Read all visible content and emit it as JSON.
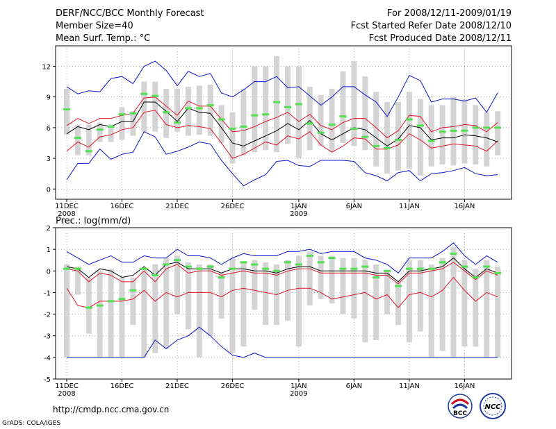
{
  "header": {
    "left": [
      "DERF/NCC/BCC Monthly Forecast",
      "Member Size=40",
      "Mean Surf. Temp.: °C"
    ],
    "right": [
      "For 2008/12/11-2009/01/19",
      "Fcst Started Refer Date 2008/12/10",
      "Fcst Produced Date 2008/12/11"
    ]
  },
  "footer": {
    "url": "http://cmdp.ncc.cma.gov.cn",
    "credit": "GrADS: COLA/IGES",
    "logos": {
      "bcc": "BCC",
      "ncc": "NCC"
    }
  },
  "colors": {
    "mean": "#000000",
    "spread": "#e0142a",
    "range": "#0a14c8",
    "box": "#d4d4d4",
    "obs": "#50e050",
    "grid": "#888888"
  },
  "chart_data": [
    {
      "type": "box-line",
      "title": "Mean Surf. Temp.: °C",
      "ylim": [
        -1,
        14
      ],
      "yticks": [
        0,
        3,
        6,
        9,
        12
      ],
      "xticks": [
        {
          "day": 1,
          "label": "11DEC",
          "sub": "2008"
        },
        {
          "day": 6,
          "label": "16DEC",
          "sub": ""
        },
        {
          "day": 11,
          "label": "21DEC",
          "sub": ""
        },
        {
          "day": 16,
          "label": "26DEC",
          "sub": ""
        },
        {
          "day": 22,
          "label": "1JAN",
          "sub": "2009"
        },
        {
          "day": 27,
          "label": "6JAN",
          "sub": ""
        },
        {
          "day": 32,
          "label": "11JAN",
          "sub": ""
        },
        {
          "day": 37,
          "label": "16JAN",
          "sub": ""
        }
      ],
      "days": [
        1,
        2,
        3,
        4,
        5,
        6,
        7,
        8,
        9,
        10,
        11,
        12,
        13,
        14,
        15,
        16,
        17,
        18,
        19,
        20,
        21,
        22,
        23,
        24,
        25,
        26,
        27,
        28,
        29,
        30,
        31,
        32,
        33,
        34,
        35,
        36,
        37,
        38,
        39,
        40
      ],
      "mean": [
        5.4,
        6.1,
        5.8,
        6.3,
        6.1,
        6.6,
        6.6,
        8.5,
        8.5,
        7.6,
        6.6,
        7.9,
        7.5,
        7.4,
        6.0,
        4.5,
        4.2,
        4.7,
        5.2,
        5.7,
        6.4,
        5.8,
        6.7,
        5.4,
        4.8,
        5.4,
        6.0,
        5.8,
        5.0,
        4.2,
        4.9,
        6.2,
        6.0,
        4.8,
        5.0,
        5.0,
        5.3,
        5.2,
        5.0,
        4.6
      ],
      "upper": [
        6.2,
        6.9,
        6.4,
        6.9,
        6.9,
        7.2,
        7.4,
        8.9,
        9.0,
        8.1,
        7.2,
        8.6,
        8.1,
        8.1,
        6.8,
        5.6,
        5.7,
        6.1,
        6.6,
        7.0,
        7.5,
        6.6,
        7.3,
        6.2,
        5.8,
        6.5,
        6.9,
        6.9,
        6.0,
        5.0,
        5.7,
        7.2,
        7.1,
        5.6,
        6.0,
        6.1,
        6.3,
        6.2,
        5.6,
        6.5
      ],
      "lower": [
        3.7,
        4.6,
        4.1,
        5.1,
        5.3,
        5.8,
        6.0,
        7.5,
        7.7,
        6.3,
        6.0,
        6.2,
        6.1,
        5.9,
        4.5,
        3.0,
        3.4,
        4.0,
        4.6,
        4.3,
        5.2,
        4.9,
        5.6,
        4.3,
        3.6,
        4.2,
        5.0,
        4.9,
        3.9,
        3.9,
        4.3,
        5.4,
        4.8,
        4.0,
        4.2,
        4.4,
        4.3,
        4.2,
        3.7,
        4.7
      ],
      "max": [
        10.0,
        9.3,
        9.6,
        9.5,
        10.8,
        11.0,
        10.3,
        12.0,
        12.5,
        11.6,
        10.1,
        11.5,
        11.0,
        11.3,
        9.4,
        9.0,
        9.7,
        10.5,
        10.5,
        11.0,
        9.9,
        10.0,
        9.1,
        8.2,
        9.0,
        10.0,
        10.0,
        9.2,
        8.5,
        7.1,
        9.0,
        11.1,
        10.6,
        8.5,
        8.8,
        8.8,
        8.6,
        8.9,
        7.5,
        9.4
      ],
      "min": [
        0.9,
        2.5,
        2.5,
        3.9,
        2.9,
        3.4,
        3.6,
        5.6,
        5.1,
        3.4,
        3.7,
        4.1,
        4.6,
        4.4,
        2.8,
        1.5,
        0.3,
        0.9,
        1.4,
        2.7,
        2.8,
        2.3,
        2.2,
        2.8,
        2.8,
        2.8,
        2.7,
        1.6,
        1.3,
        0.8,
        1.6,
        1.8,
        0.8,
        1.5,
        1.6,
        1.8,
        2.1,
        1.5,
        1.3,
        1.4
      ],
      "box_top": [
        9.8,
        6.3,
        6.3,
        6.5,
        6.3,
        8.0,
        7.6,
        10.5,
        10.5,
        9.8,
        9.8,
        10.0,
        10.1,
        10.2,
        8.2,
        7.5,
        9.8,
        12.0,
        12.0,
        13.0,
        12.0,
        12.0,
        10.0,
        9.2,
        9.8,
        11.5,
        12.5,
        11.0,
        9.5,
        8.5,
        8.5,
        9.5,
        8.8,
        8.2,
        8.2,
        9.0,
        8.8,
        8.2,
        7.5,
        7.6
      ],
      "box_bot": [
        5.3,
        3.3,
        3.3,
        4.6,
        4.6,
        4.8,
        5.2,
        5.6,
        5.6,
        5.0,
        5.6,
        5.2,
        5.3,
        5.2,
        4.5,
        2.5,
        3.3,
        3.6,
        3.8,
        3.6,
        4.4,
        3.0,
        3.8,
        4.2,
        3.6,
        4.5,
        4.2,
        3.8,
        2.2,
        1.5,
        1.8,
        2.0,
        1.3,
        2.2,
        2.4,
        2.3,
        2.5,
        2.4,
        2.2,
        3.3
      ],
      "obs": [
        7.8,
        5.0,
        3.7,
        5.8,
        6.1,
        7.3,
        7.4,
        9.3,
        9.1,
        7.5,
        6.5,
        7.9,
        7.9,
        8.2,
        6.8,
        5.9,
        6.1,
        7.2,
        7.3,
        8.5,
        8.0,
        8.3,
        6.4,
        5.5,
        6.3,
        7.1,
        5.9,
        5.1,
        4.2,
        4.0,
        4.8,
        6.8,
        6.2,
        4.7,
        5.6,
        5.7,
        5.7,
        6.0,
        6.0,
        6.0
      ]
    },
    {
      "type": "box-line",
      "title": "Prec.: log(mm/d)",
      "ylim": [
        -5,
        2
      ],
      "yticks": [
        -5,
        -4,
        -3,
        -2,
        -1,
        0,
        1,
        2
      ],
      "xticks": [
        {
          "day": 1,
          "label": "11DEC",
          "sub": "2008"
        },
        {
          "day": 6,
          "label": "16DEC",
          "sub": ""
        },
        {
          "day": 11,
          "label": "21DEC",
          "sub": ""
        },
        {
          "day": 16,
          "label": "26DEC",
          "sub": ""
        },
        {
          "day": 22,
          "label": "1JAN",
          "sub": "2009"
        },
        {
          "day": 27,
          "label": "6JAN",
          "sub": ""
        },
        {
          "day": 32,
          "label": "11JAN",
          "sub": ""
        },
        {
          "day": 37,
          "label": "16JAN",
          "sub": ""
        }
      ],
      "days": [
        1,
        2,
        3,
        4,
        5,
        6,
        7,
        8,
        9,
        10,
        11,
        12,
        13,
        14,
        15,
        16,
        17,
        18,
        19,
        20,
        21,
        22,
        23,
        24,
        25,
        26,
        27,
        28,
        29,
        30,
        31,
        32,
        33,
        34,
        35,
        36,
        37,
        38,
        39,
        40
      ],
      "mean": [
        0.2,
        0.1,
        -0.3,
        0.1,
        0.0,
        -0.3,
        -0.2,
        0.2,
        -0.2,
        0.3,
        0.4,
        0.1,
        0.1,
        0.1,
        -0.1,
        0.1,
        0.1,
        0.0,
        0.0,
        -0.1,
        0.1,
        0.2,
        0.2,
        0.0,
        0.0,
        0.0,
        0.0,
        0.0,
        -0.1,
        -0.1,
        -0.5,
        0.0,
        0.0,
        0.1,
        0.2,
        0.6,
        0.1,
        -0.3,
        0.1,
        -0.1
      ],
      "upper": [
        0.1,
        0.0,
        -0.5,
        -0.1,
        -0.2,
        -0.5,
        -0.5,
        0.0,
        -0.5,
        0.1,
        0.3,
        -0.1,
        0.0,
        0.0,
        -0.2,
        -0.1,
        0.0,
        -0.1,
        -0.1,
        -0.2,
        0.0,
        0.1,
        0.1,
        -0.1,
        -0.1,
        -0.1,
        -0.1,
        -0.1,
        -0.2,
        -0.2,
        -0.6,
        -0.1,
        -0.1,
        0.0,
        0.1,
        0.4,
        0.0,
        -0.4,
        0.0,
        -0.2
      ],
      "lower": [
        -0.8,
        -1.6,
        -1.7,
        -1.4,
        -1.4,
        -1.4,
        -1.3,
        -0.9,
        -1.4,
        -1.0,
        -1.2,
        -1.0,
        -1.0,
        -1.0,
        -1.2,
        -0.9,
        -0.8,
        -0.9,
        -1.0,
        -1.1,
        -0.9,
        -0.8,
        -0.8,
        -1.0,
        -1.3,
        -1.2,
        -1.1,
        -1.0,
        -1.3,
        -1.1,
        -1.7,
        -1.1,
        -1.0,
        -1.2,
        -0.9,
        -0.3,
        -0.9,
        -1.4,
        -1.0,
        -1.2
      ],
      "max": [
        0.9,
        0.6,
        0.3,
        0.5,
        0.7,
        0.4,
        0.4,
        0.7,
        0.6,
        0.6,
        1.0,
        0.7,
        0.7,
        0.6,
        0.3,
        0.6,
        0.8,
        0.7,
        0.7,
        0.7,
        0.9,
        0.9,
        1.0,
        0.8,
        0.9,
        0.9,
        0.9,
        0.6,
        0.5,
        0.3,
        -0.1,
        0.6,
        0.6,
        0.6,
        0.9,
        1.3,
        0.7,
        0.3,
        0.7,
        0.4
      ],
      "min": [
        -4.0,
        -4.0,
        -4.0,
        -4.0,
        -4.0,
        -4.0,
        -4.0,
        -4.0,
        -3.2,
        -3.6,
        -3.2,
        -3.0,
        -2.6,
        -3.0,
        -3.5,
        -3.9,
        -4.0,
        -3.8,
        -4.0,
        -4.0,
        -4.0,
        -4.0,
        -4.0,
        -4.0,
        -4.0,
        -4.0,
        -4.0,
        -4.0,
        -4.0,
        -4.0,
        -4.0,
        -4.0,
        -4.0,
        -4.0,
        -4.0,
        -4.0,
        -4.0,
        -4.0,
        -4.0,
        -4.0
      ],
      "box_top": [
        0.3,
        0.2,
        -0.3,
        0.0,
        0.1,
        -0.3,
        -0.3,
        0.1,
        0.3,
        0.6,
        0.7,
        0.4,
        0.3,
        0.3,
        -0.1,
        0.6,
        0.4,
        0.5,
        0.4,
        0.3,
        0.5,
        0.7,
        0.9,
        0.7,
        0.7,
        0.6,
        0.6,
        0.5,
        0.3,
        0.0,
        -0.5,
        0.5,
        0.5,
        0.3,
        0.6,
        1.1,
        0.5,
        0.1,
        0.5,
        0.2
      ],
      "box_bot": [
        -4.0,
        -1.1,
        -2.9,
        -4.0,
        -4.0,
        -4.0,
        -2.5,
        -4.0,
        -3.8,
        -3.6,
        -2.0,
        -2.7,
        -4.0,
        -3.0,
        -2.2,
        -3.8,
        -3.5,
        -1.8,
        -2.5,
        -2.5,
        -2.3,
        -3.5,
        -1.6,
        -1.3,
        -1.5,
        -2.0,
        -2.2,
        -3.3,
        -3.2,
        -2.0,
        -2.5,
        -3.3,
        -2.8,
        -4.0,
        -3.7,
        -4.0,
        -3.5,
        -3.5,
        -4.0,
        -4.0
      ],
      "obs": [
        0.1,
        0.1,
        -1.7,
        -1.6,
        -1.4,
        -1.3,
        -0.9,
        0.1,
        -0.2,
        0.3,
        0.5,
        0.2,
        0.1,
        0.2,
        -0.3,
        0.1,
        0.4,
        0.3,
        0.1,
        0.0,
        0.4,
        0.3,
        0.7,
        0.4,
        0.6,
        0.1,
        0.1,
        0.2,
        -0.3,
        0.0,
        -0.7,
        0.1,
        0.1,
        0.1,
        0.4,
        0.8,
        0.2,
        -0.3,
        0.2,
        -0.1
      ]
    }
  ]
}
